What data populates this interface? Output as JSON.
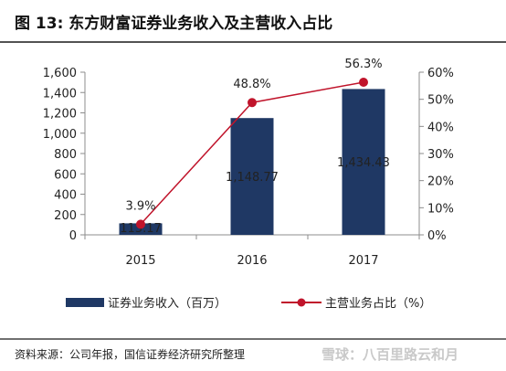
{
  "header": {
    "title": "图 13:  东方财富证券业务收入及主营收入占比"
  },
  "chart_data": {
    "type": "bar+line",
    "categories": [
      "2015",
      "2016",
      "2017"
    ],
    "series": [
      {
        "name": "证券业务收入（百万）",
        "type": "bar",
        "axis": "left",
        "values": [
          113.17,
          1148.77,
          1434.43
        ],
        "labels": [
          "113.17",
          "1,148.77",
          "1,434.43"
        ]
      },
      {
        "name": "主营业务占比（%）",
        "type": "line",
        "axis": "right",
        "values": [
          3.9,
          48.8,
          56.3
        ],
        "labels": [
          "3.9%",
          "48.8%",
          "56.3%"
        ]
      }
    ],
    "y_left": {
      "ylim": [
        0,
        1600
      ],
      "ticks": [
        0,
        200,
        400,
        600,
        800,
        1000,
        1200,
        1400,
        1600
      ],
      "tick_labels": [
        "0",
        "200",
        "400",
        "600",
        "800",
        "1,000",
        "1,200",
        "1,400",
        "1,600"
      ]
    },
    "y_right": {
      "ylim": [
        0,
        60
      ],
      "ticks": [
        0,
        10,
        20,
        30,
        40,
        50,
        60
      ],
      "tick_labels": [
        "0%",
        "10%",
        "20%",
        "30%",
        "40%",
        "50%",
        "60%"
      ]
    },
    "grid": false,
    "legend": "bottom",
    "colors": {
      "bar": "#1f3864",
      "line": "#c0142b",
      "axis": "#8c8c8c"
    }
  },
  "footer": {
    "source": "资料来源：公司年报，国信证券经济研究所整理",
    "watermark": "雪球：八百里路云和月"
  }
}
